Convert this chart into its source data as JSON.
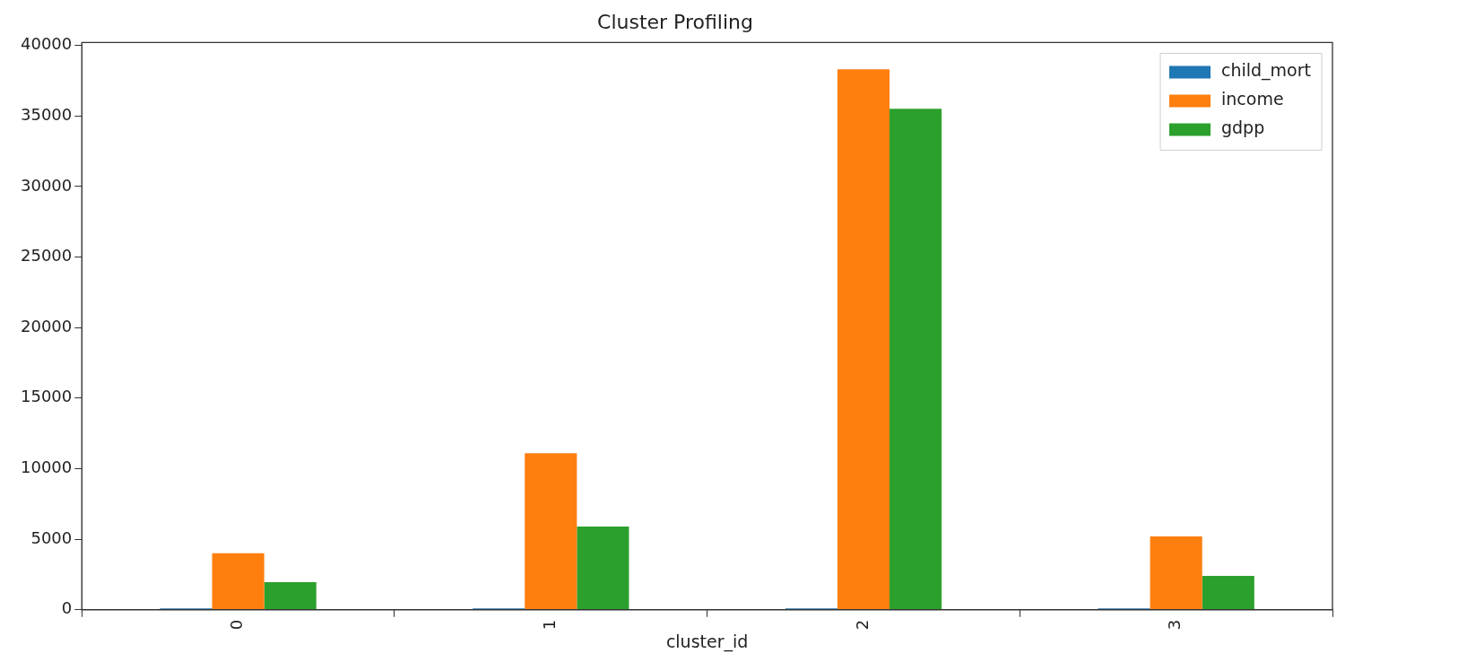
{
  "chart_data": {
    "type": "bar",
    "title": "Cluster Profiling",
    "xlabel": "cluster_id",
    "categories": [
      "0",
      "1",
      "2",
      "3"
    ],
    "series": [
      {
        "name": "child_mort",
        "color": "#1f77b4",
        "values": [
          100,
          100,
          100,
          100
        ]
      },
      {
        "name": "income",
        "color": "#ff7f0e",
        "values": [
          4000,
          11100,
          38300,
          5200
        ]
      },
      {
        "name": "gdpp",
        "color": "#2ca02c",
        "values": [
          1950,
          5900,
          35500,
          2400
        ]
      }
    ],
    "ylim": [
      0,
      40200
    ],
    "yticks": [
      0,
      5000,
      10000,
      15000,
      20000,
      25000,
      30000,
      35000,
      40000
    ],
    "grid": false,
    "legend": "top right"
  }
}
